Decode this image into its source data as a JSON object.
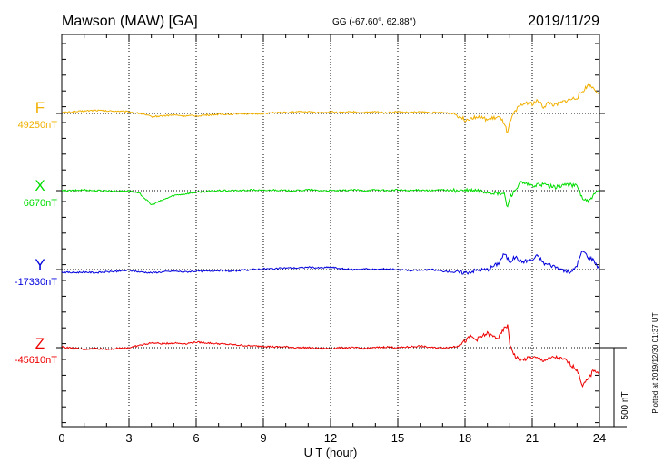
{
  "header": {
    "station": "Mawson (MAW)  [GA]",
    "coords": "GG (-67.60°,  62.88°)",
    "date": "2019/11/29"
  },
  "scale_label": "500 nT",
  "plotted_note": "Plotted at 2019/12/30 01:37 UT",
  "chart_data": {
    "type": "line",
    "title": "Mawson (MAW)  [GA]",
    "xlabel": "U T (hour)",
    "ylabel": "",
    "xlim": [
      0,
      24
    ],
    "xticks": [
      "0",
      "3",
      "6",
      "9",
      "12",
      "15",
      "18",
      "21",
      "24"
    ],
    "y_scale_bar_nT": 500,
    "grid": "dotted vertical at every 3 h; dotted baseline per component",
    "series": [
      {
        "name": "F",
        "baseline_label": "49250nT",
        "color": "#f0b000",
        "x": [
          0,
          0.5,
          1,
          1.5,
          2,
          2.5,
          3,
          3.5,
          4,
          4.5,
          5,
          5.5,
          6,
          6.5,
          7,
          7.5,
          8,
          8.5,
          9,
          9.5,
          10,
          10.5,
          11,
          11.5,
          12,
          12.5,
          13,
          13.5,
          14,
          14.5,
          15,
          15.5,
          16,
          16.5,
          17,
          17.5,
          18,
          18.5,
          19,
          19.25,
          19.5,
          19.75,
          19.9,
          20,
          20.25,
          20.5,
          20.75,
          21,
          21.25,
          21.5,
          21.75,
          22,
          22.5,
          23,
          23.25,
          23.5,
          23.75,
          24
        ],
        "values": [
          5,
          10,
          15,
          20,
          15,
          15,
          10,
          0,
          -20,
          -15,
          -10,
          -15,
          -15,
          -10,
          -5,
          -5,
          0,
          -5,
          0,
          5,
          5,
          10,
          10,
          5,
          10,
          5,
          10,
          5,
          10,
          5,
          10,
          5,
          10,
          5,
          5,
          0,
          -40,
          -20,
          -40,
          -30,
          -25,
          -60,
          -130,
          -60,
          20,
          50,
          70,
          60,
          80,
          40,
          70,
          50,
          80,
          100,
          140,
          180,
          160,
          125
        ]
      },
      {
        "name": "X",
        "baseline_label": "6670nT",
        "color": "#00dd00",
        "x": [
          0,
          0.5,
          1,
          1.5,
          2,
          2.5,
          3,
          3.5,
          4,
          4.5,
          5,
          5.5,
          6,
          6.5,
          7,
          7.5,
          8,
          8.5,
          9,
          9.5,
          10,
          10.5,
          11,
          11.5,
          12,
          12.5,
          13,
          13.5,
          14,
          14.5,
          15,
          15.5,
          16,
          16.5,
          17,
          17.5,
          18,
          18.5,
          19,
          19.5,
          19.75,
          19.9,
          20,
          20.5,
          21,
          21.5,
          22,
          22.5,
          23,
          23.25,
          23.5,
          23.75,
          24
        ],
        "values": [
          0,
          0,
          5,
          0,
          0,
          -5,
          0,
          -20,
          -90,
          -60,
          -30,
          -20,
          -10,
          -5,
          0,
          0,
          0,
          5,
          0,
          5,
          0,
          0,
          5,
          0,
          0,
          0,
          5,
          0,
          5,
          0,
          5,
          0,
          5,
          0,
          5,
          0,
          0,
          0,
          -10,
          -20,
          -20,
          -110,
          -40,
          50,
          30,
          40,
          20,
          40,
          30,
          -50,
          -70,
          -30,
          5
        ]
      },
      {
        "name": "Y",
        "baseline_label": "-17330nT",
        "color": "#0000dd",
        "x": [
          0,
          0.5,
          1,
          1.5,
          2,
          2.5,
          3,
          3.5,
          4,
          4.5,
          5,
          5.5,
          6,
          6.5,
          7,
          7.5,
          8,
          8.5,
          9,
          9.5,
          10,
          10.5,
          11,
          11.5,
          12,
          12.5,
          13,
          13.5,
          14,
          14.5,
          15,
          15.5,
          16,
          16.5,
          17,
          17.5,
          18,
          18.5,
          19,
          19.5,
          19.75,
          20,
          20.25,
          20.5,
          21,
          21.25,
          21.5,
          22,
          22.5,
          22.75,
          23,
          23.25,
          23.5,
          23.75,
          24
        ],
        "values": [
          -15,
          -20,
          -15,
          -20,
          -15,
          -10,
          -5,
          -15,
          -20,
          -15,
          -10,
          -15,
          -10,
          -10,
          -5,
          -10,
          -5,
          0,
          5,
          5,
          10,
          10,
          15,
          10,
          15,
          5,
          0,
          5,
          0,
          5,
          0,
          -5,
          -5,
          0,
          -10,
          -15,
          -20,
          -5,
          0,
          40,
          100,
          50,
          80,
          50,
          60,
          90,
          40,
          20,
          -10,
          -20,
          30,
          120,
          80,
          60,
          0
        ]
      },
      {
        "name": "Z",
        "baseline_label": "-45610nT",
        "color": "#ee0000",
        "x": [
          0,
          0.5,
          1,
          1.5,
          2,
          2.5,
          3,
          3.5,
          4,
          4.5,
          5,
          5.5,
          6,
          6.5,
          7,
          7.5,
          8,
          8.5,
          9,
          9.5,
          10,
          10.5,
          11,
          11.5,
          12,
          12.5,
          13,
          13.5,
          14,
          14.5,
          15,
          15.5,
          16,
          16.5,
          17,
          17.5,
          18,
          18.25,
          18.5,
          19,
          19.25,
          19.5,
          19.75,
          19.9,
          20,
          20.25,
          20.5,
          21,
          21.5,
          22,
          22.5,
          23,
          23.25,
          23.5,
          23.75,
          24
        ],
        "values": [
          5,
          -5,
          -10,
          -5,
          -10,
          -5,
          0,
          15,
          30,
          25,
          30,
          25,
          35,
          30,
          25,
          20,
          15,
          10,
          10,
          5,
          5,
          0,
          0,
          -5,
          -5,
          0,
          0,
          -5,
          0,
          5,
          0,
          5,
          10,
          0,
          0,
          5,
          40,
          70,
          50,
          90,
          70,
          60,
          120,
          140,
          20,
          -60,
          -80,
          -60,
          -80,
          -60,
          -80,
          -140,
          -240,
          -200,
          -140,
          -160
        ]
      }
    ]
  }
}
